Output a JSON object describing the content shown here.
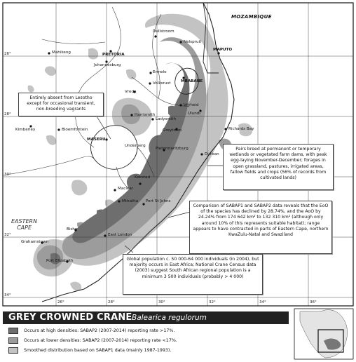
{
  "title": "GREY CROWNED CRANE",
  "scientific_name": "Balearica regulorum",
  "colors": {
    "high_density": "#6e6e6e",
    "low_density": "#9c9c9c",
    "sabap1": "#c3c3c3",
    "grid": "#333333",
    "land": "#ffffff",
    "title_bar": "#222222"
  },
  "legend": [
    {
      "label": "Occurs at high densities: SABAP2 (2007-2014) reporting rate >17%.",
      "swatch": "high_density"
    },
    {
      "label": "Occurs at lower densities: SABAP2 (2007-2014) reporting rate <17%.",
      "swatch": "low_density"
    },
    {
      "label": "Smoothed distribution based on SABAP1 data (mainly 1987-1993).",
      "swatch": "sabap1"
    }
  ],
  "lat_ticks": [
    "26°",
    "28°",
    "30°",
    "32°",
    "34°"
  ],
  "lon_ticks": [
    "26°",
    "28°",
    "30°",
    "32°",
    "34°",
    "36°"
  ],
  "countries": {
    "mozambique": "MOZAMBIQUE"
  },
  "regions": {
    "eastern_cape": [
      "EASTERN",
      "CAPE"
    ]
  },
  "places": {
    "mahikeng": "Mahikeng",
    "pretoria": "PRETORIA",
    "johannesburg": "Johannesburg",
    "dullstroom": "Dullstroom",
    "nelspruit": "Nelspruit",
    "maputo": "MAPUTO",
    "mbabane": "MBABANE",
    "ermelo": "Ermelo",
    "volksrust": "Volksrust",
    "vrede": "Vrede",
    "vryheid": "Vryheid",
    "ulundi": "Ulundi",
    "harrismith": "Harrismith",
    "ladysmith": "Ladysmith",
    "greytown": "Greytown",
    "richards_bay": "Richards Bay",
    "kimberley": "Kimberley",
    "bloemfontein": "Bloemfontein",
    "maseru": "MASERU",
    "underberg": "Underberg",
    "pietermaritzburg": "Pietermaritzburg",
    "durban": "Durban",
    "kokstad": "Kokstad",
    "maclear": "Maclear",
    "mthatha": "Mthatha",
    "port_st_johns": "Port St Johns",
    "bisho": "Bisho",
    "east_london": "East London",
    "grahamstown": "Grahamstown",
    "port_elizabeth": "Port Elizabeth"
  },
  "callouts": {
    "lesotho": "Entirely absent from Lesotho except for occasional transient, non-breeding vagrants",
    "breeding": "Pairs breed at permanent or temporary wetlands or vegetated farm dams, with peak egg-laying November-December; forages in open grassland, pastures, irrigated areas, fallow fields and crops (56% of records from cultivated lands)",
    "comparison": "Comparison of SABAP1 and SABAP2 data reveals that the EoO of the species has declined by 28.74%, and the AoO by 24.24% from 174 642 km² to 132 310 km² (although only around 10% of this represents suitable habitat); range appears to have contracted in parts of Eastern Cape, northern KwaZulu-Natal and Swaziland",
    "population": "Global population c. 50 000-64 000 individuals (in 2004), but majority occurs in East Africa; National Crane Census data (2003) suggest South African regional population is a minimum 3 500 individuals (probably > 4 000)"
  }
}
